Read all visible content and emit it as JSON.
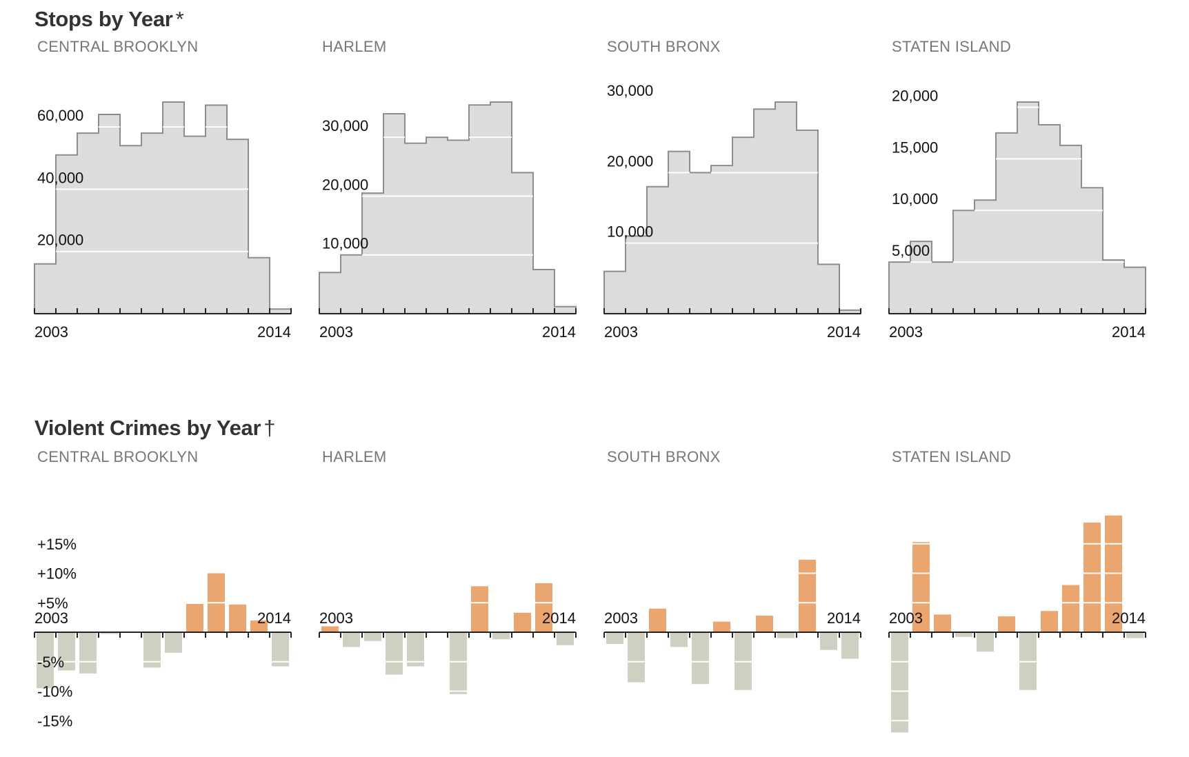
{
  "stops_title": "Stops by Year",
  "stops_mark": "*",
  "crimes_title": "Violent Crimes by Year",
  "crimes_mark": "†",
  "colors": {
    "stops_fill": "#dcdcdc",
    "stops_line": "#8c8c8c",
    "increase": "#eba56f",
    "decrease": "#cfcfc2",
    "axis": "#222222"
  },
  "chart_data": [
    {
      "type": "area",
      "group": "stops",
      "title": "CENTRAL BROOKLYN",
      "x": [
        2003,
        2004,
        2005,
        2006,
        2007,
        2008,
        2009,
        2010,
        2011,
        2012,
        2013,
        2014
      ],
      "values": [
        16000,
        51000,
        58000,
        64000,
        54000,
        58000,
        68000,
        57000,
        67000,
        56000,
        18000,
        1500
      ],
      "yticks": [
        20000,
        40000,
        60000
      ],
      "ytick_labels": [
        "20,000",
        "40,000",
        "60,000"
      ],
      "ylim": [
        0,
        68000
      ],
      "xtick_labels": [
        "2003",
        "2014"
      ]
    },
    {
      "type": "area",
      "group": "stops",
      "title": "HARLEM",
      "x": [
        2003,
        2004,
        2005,
        2006,
        2007,
        2008,
        2009,
        2010,
        2011,
        2012,
        2013,
        2014
      ],
      "values": [
        7000,
        10000,
        20500,
        34000,
        29000,
        30000,
        29500,
        35500,
        36000,
        24000,
        7500,
        1200
      ],
      "yticks": [
        10000,
        20000,
        30000
      ],
      "ytick_labels": [
        "10,000",
        "20,000",
        "30,000"
      ],
      "ylim": [
        0,
        36000
      ],
      "xtick_labels": [
        "2003",
        "2014"
      ]
    },
    {
      "type": "area",
      "group": "stops",
      "title": "SOUTH BRONX",
      "x": [
        2003,
        2004,
        2005,
        2006,
        2007,
        2008,
        2009,
        2010,
        2011,
        2012,
        2013,
        2014
      ],
      "values": [
        6000,
        11000,
        18000,
        23000,
        20000,
        21000,
        25000,
        29000,
        30000,
        26000,
        7000,
        500
      ],
      "yticks": [
        10000,
        20000,
        30000
      ],
      "ytick_labels": [
        "10,000",
        "20,000",
        "30,000"
      ],
      "ylim": [
        0,
        30000
      ],
      "xtick_labels": [
        "2003",
        "2014"
      ]
    },
    {
      "type": "area",
      "group": "stops",
      "title": "STATEN ISLAND",
      "x": [
        2003,
        2004,
        2005,
        2006,
        2007,
        2008,
        2009,
        2010,
        2011,
        2012,
        2013,
        2014
      ],
      "values": [
        5000,
        7000,
        5000,
        10000,
        11000,
        17500,
        20500,
        18300,
        16300,
        12200,
        5200,
        4500
      ],
      "yticks": [
        5000,
        10000,
        15000,
        20000
      ],
      "ytick_labels": [
        "5,000",
        "10,000",
        "15,000",
        "20,000"
      ],
      "ylim": [
        0,
        20500
      ],
      "xtick_labels": [
        "2003",
        "2014"
      ]
    },
    {
      "type": "bar",
      "group": "crimes",
      "title": "CENTRAL BROOKLYN",
      "x": [
        2003,
        2004,
        2005,
        2006,
        2007,
        2008,
        2009,
        2010,
        2011,
        2012,
        2013,
        2014
      ],
      "values": [
        -9.5,
        -6.5,
        -7.0,
        -0.3,
        0,
        -6.0,
        -3.5,
        4.8,
        10.0,
        4.7,
        2.0,
        -5.8
      ],
      "yticks": [
        -15,
        -10,
        -5,
        5,
        10,
        15
      ],
      "ytick_labels": [
        "-15%",
        "-10%",
        "-5%",
        "+5%",
        "+10%",
        "+15%"
      ],
      "ylim": [
        -18,
        19
      ],
      "xtick_labels": [
        "2003",
        "2014"
      ]
    },
    {
      "type": "bar",
      "group": "crimes",
      "title": "HARLEM",
      "x": [
        2003,
        2004,
        2005,
        2006,
        2007,
        2008,
        2009,
        2010,
        2011,
        2012,
        2013,
        2014
      ],
      "values": [
        1.0,
        -2.5,
        -1.5,
        -7.2,
        -5.8,
        0,
        -10.5,
        7.8,
        -1.2,
        3.3,
        8.3,
        -2.2
      ],
      "yticks": [],
      "ytick_labels": [],
      "ylim": [
        -18,
        19
      ],
      "xtick_labels": [
        "2003",
        "2014"
      ]
    },
    {
      "type": "bar",
      "group": "crimes",
      "title": "SOUTH BRONX",
      "x": [
        2003,
        2004,
        2005,
        2006,
        2007,
        2008,
        2009,
        2010,
        2011,
        2012,
        2013,
        2014
      ],
      "values": [
        -2.0,
        -8.5,
        4.0,
        -2.5,
        -8.8,
        1.8,
        -9.8,
        2.8,
        -1.0,
        12.3,
        -3.0,
        -4.5
      ],
      "yticks": [],
      "ytick_labels": [],
      "ylim": [
        -18,
        19
      ],
      "xtick_labels": [
        "2003",
        "2014"
      ]
    },
    {
      "type": "bar",
      "group": "crimes",
      "title": "STATEN ISLAND",
      "x": [
        2003,
        2004,
        2005,
        2006,
        2007,
        2008,
        2009,
        2010,
        2011,
        2012,
        2013,
        2014
      ],
      "values": [
        -17.0,
        15.3,
        3.0,
        -0.8,
        -3.3,
        2.7,
        -9.8,
        3.6,
        8.0,
        18.6,
        19.8,
        -1.0
      ],
      "yticks": [],
      "ytick_labels": [],
      "ylim": [
        -18,
        19
      ],
      "xtick_labels": [
        "2003",
        "2014"
      ]
    }
  ]
}
